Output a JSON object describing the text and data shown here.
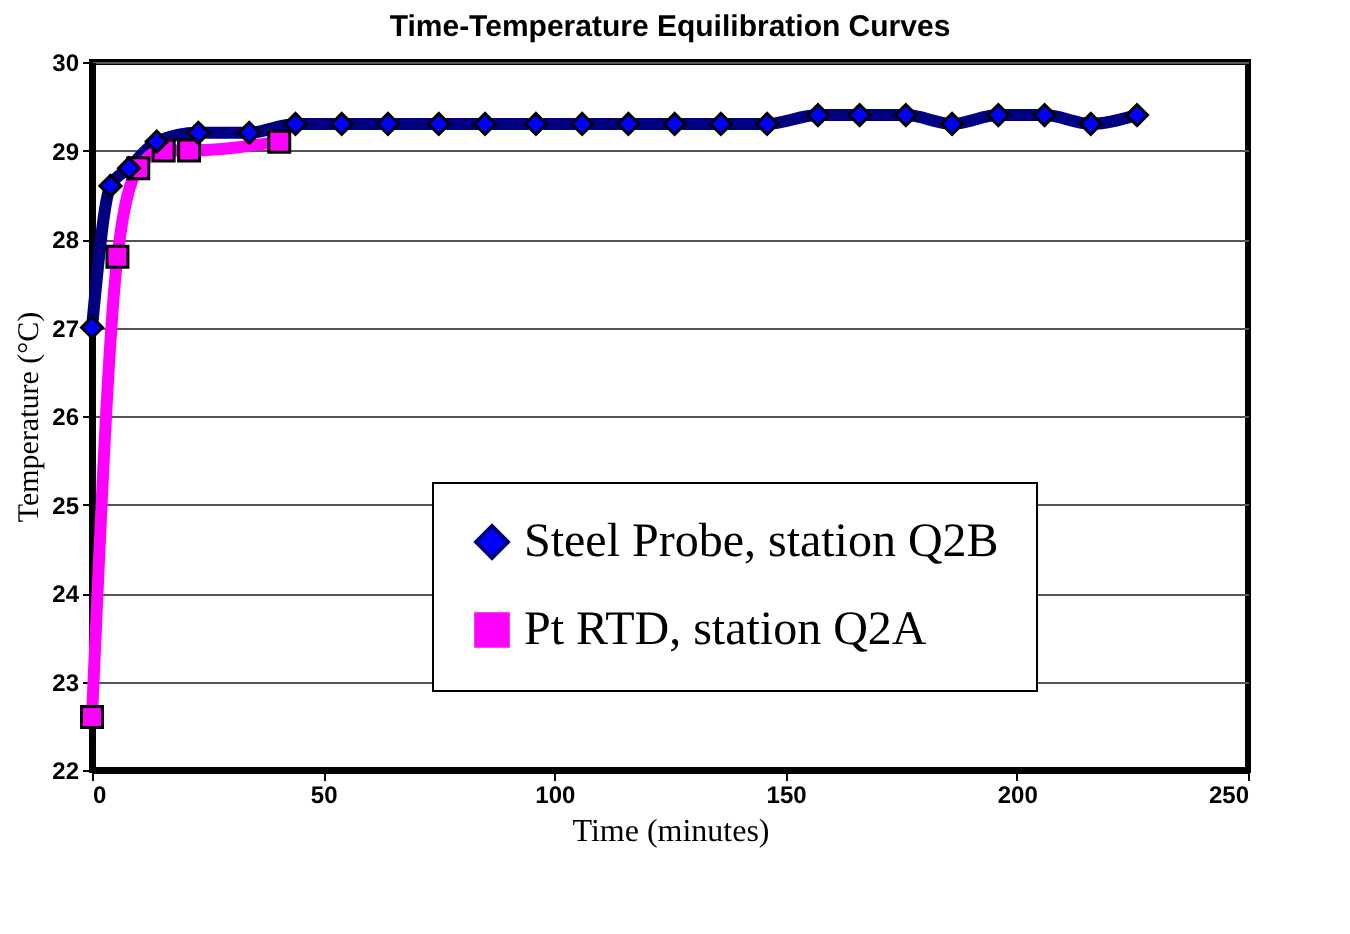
{
  "chart_data": {
    "type": "line",
    "title": "Time-Temperature Equilibration Curves",
    "xlabel": "Time (minutes)",
    "ylabel": "Temperature (°C)",
    "xlim": [
      0,
      250
    ],
    "xticks": [
      0,
      50,
      100,
      150,
      200,
      250
    ],
    "ylim": [
      22,
      30
    ],
    "yticks": [
      22,
      23,
      24,
      25,
      26,
      27,
      28,
      29,
      30
    ],
    "grid": "y",
    "legend": "bottom right",
    "series": [
      {
        "name": "Steel Probe, station Q2B",
        "color": "#000080",
        "marker": "diamond",
        "x": [
          0,
          4,
          8,
          14,
          23,
          34,
          44,
          54,
          64,
          75,
          85,
          96,
          106,
          116,
          126,
          136,
          146,
          157,
          166,
          176,
          186,
          196,
          206,
          216,
          226
        ],
        "values": [
          27,
          28.6,
          28.8,
          29.1,
          29.2,
          29.2,
          29.3,
          29.3,
          29.3,
          29.3,
          29.3,
          29.3,
          29.3,
          29.3,
          29.3,
          29.3,
          29.3,
          29.4,
          29.4,
          29.4,
          29.3,
          29.4,
          29.4,
          29.3,
          29.4
        ]
      },
      {
        "name": "Pt RTD, station Q2A",
        "color": "#ff00ff",
        "marker": "square",
        "x": [
          0,
          5.5,
          10,
          15.5,
          21,
          40.5
        ],
        "values": [
          22.6,
          27.8,
          28.8,
          29.0,
          29.0,
          29.1
        ]
      }
    ]
  }
}
